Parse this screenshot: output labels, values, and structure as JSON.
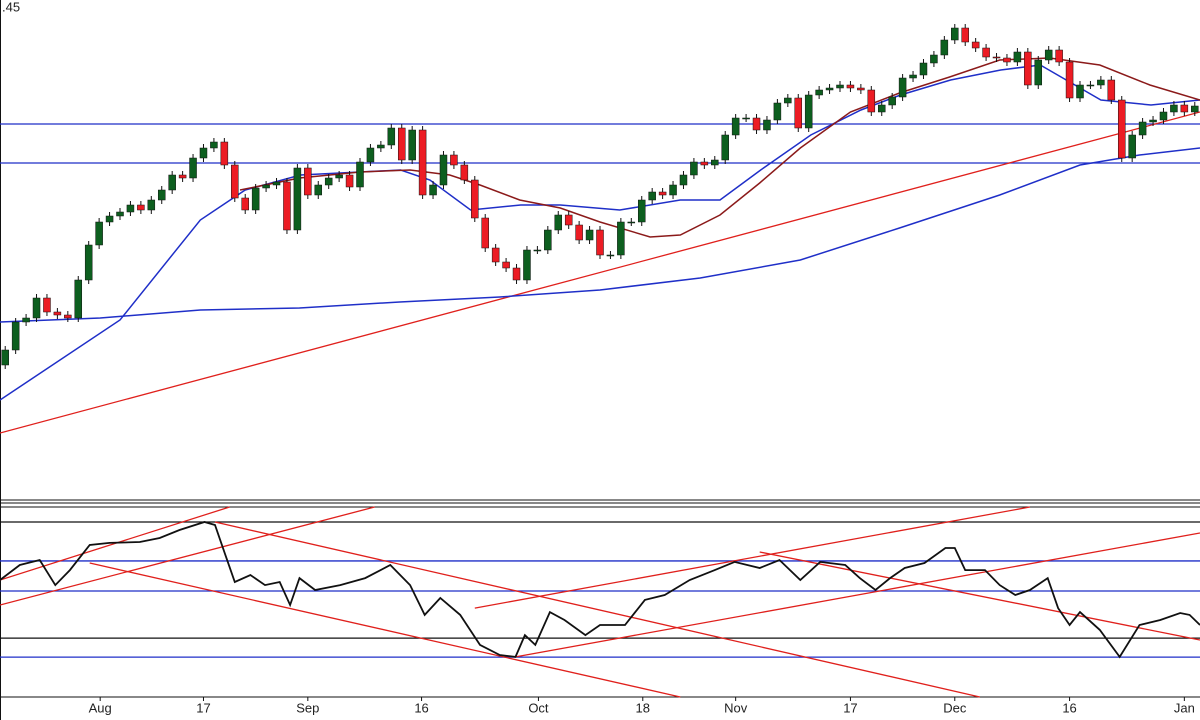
{
  "chart_data": [
    {
      "type": "candlestick",
      "price_label": ".45",
      "xlim": [
        0,
        115
      ],
      "ylim": [
        0,
        500
      ],
      "up_color": "#0d5f1f",
      "down_color": "#ec1c24",
      "wick_color": "#111111",
      "open": [
        135,
        150,
        178,
        182,
        202,
        188,
        185,
        182,
        220,
        255,
        278,
        284,
        288,
        295,
        290,
        300,
        310,
        325,
        322,
        342,
        352,
        358,
        335,
        302,
        290,
        312,
        315,
        318,
        270,
        332,
        305,
        315,
        322,
        325,
        313,
        338,
        352,
        355,
        372,
        340,
        370,
        305,
        315,
        345,
        335,
        320,
        282,
        252,
        238,
        232,
        220,
        250,
        250,
        270,
        285,
        275,
        260,
        270,
        245,
        245,
        278,
        278,
        300,
        308,
        305,
        315,
        325,
        338,
        335,
        340,
        365,
        382,
        382,
        370,
        380,
        397,
        402,
        372,
        405,
        410,
        412,
        415,
        412,
        410,
        388,
        395,
        403,
        422,
        425,
        437,
        445,
        460,
        472,
        458,
        452,
        443,
        442,
        438,
        448,
        415,
        440,
        450,
        438,
        402,
        415,
        415,
        420,
        400,
        342,
        365,
        378,
        380,
        388,
        395,
        388
      ],
      "high": [
        154,
        182,
        186,
        206,
        206,
        192,
        189,
        224,
        259,
        282,
        288,
        292,
        299,
        299,
        304,
        314,
        329,
        329,
        346,
        356,
        362,
        362,
        339,
        306,
        316,
        319,
        322,
        322,
        336,
        336,
        319,
        326,
        329,
        329,
        342,
        356,
        359,
        376,
        376,
        374,
        374,
        319,
        349,
        349,
        339,
        324,
        286,
        256,
        242,
        236,
        254,
        254,
        274,
        289,
        289,
        279,
        274,
        274,
        249,
        282,
        282,
        304,
        312,
        312,
        319,
        329,
        342,
        342,
        344,
        369,
        386,
        386,
        386,
        384,
        401,
        406,
        406,
        409,
        414,
        416,
        419,
        419,
        416,
        414,
        399,
        407,
        426,
        429,
        441,
        449,
        464,
        476,
        476,
        462,
        456,
        447,
        446,
        452,
        452,
        444,
        454,
        454,
        442,
        419,
        419,
        424,
        424,
        404,
        369,
        382,
        384,
        392,
        399,
        399,
        398
      ],
      "low": [
        131,
        146,
        174,
        178,
        184,
        181,
        178,
        178,
        216,
        251,
        274,
        280,
        284,
        286,
        286,
        296,
        306,
        318,
        318,
        338,
        348,
        331,
        298,
        286,
        286,
        308,
        311,
        266,
        266,
        301,
        301,
        311,
        318,
        309,
        309,
        334,
        348,
        351,
        336,
        336,
        301,
        301,
        311,
        331,
        316,
        278,
        248,
        234,
        228,
        216,
        216,
        246,
        246,
        266,
        271,
        256,
        256,
        241,
        241,
        241,
        274,
        274,
        296,
        301,
        301,
        311,
        321,
        331,
        331,
        336,
        361,
        378,
        366,
        366,
        376,
        393,
        368,
        368,
        401,
        406,
        408,
        408,
        406,
        384,
        384,
        391,
        399,
        418,
        421,
        433,
        441,
        456,
        454,
        448,
        439,
        438,
        434,
        434,
        411,
        411,
        436,
        434,
        398,
        398,
        411,
        411,
        396,
        338,
        338,
        361,
        374,
        376,
        384,
        384,
        384
      ],
      "close": [
        150,
        178,
        182,
        202,
        188,
        185,
        182,
        220,
        255,
        278,
        284,
        288,
        295,
        290,
        300,
        310,
        325,
        322,
        342,
        352,
        358,
        335,
        302,
        290,
        312,
        315,
        318,
        270,
        332,
        305,
        315,
        322,
        325,
        313,
        338,
        352,
        355,
        372,
        340,
        370,
        305,
        315,
        345,
        335,
        320,
        282,
        252,
        238,
        232,
        220,
        250,
        250,
        270,
        285,
        275,
        260,
        270,
        245,
        245,
        278,
        278,
        300,
        308,
        305,
        315,
        325,
        338,
        335,
        340,
        365,
        382,
        382,
        370,
        380,
        397,
        402,
        372,
        405,
        410,
        412,
        415,
        412,
        410,
        388,
        395,
        403,
        422,
        425,
        437,
        445,
        460,
        472,
        458,
        452,
        443,
        442,
        438,
        448,
        415,
        440,
        450,
        438,
        402,
        415,
        415,
        420,
        400,
        342,
        365,
        378,
        380,
        388,
        395,
        388,
        394
      ],
      "overlays": [
        {
          "color": "#1f2fc8",
          "x": [
            0,
            11.5,
            19.2,
            23.5,
            28.8,
            38.4,
            41.2,
            45.1,
            49.9,
            53.7,
            59.4,
            65.2,
            69,
            72.9,
            77.7,
            82.5,
            86.3,
            91.1,
            95.9,
            99.7,
            105.5,
            110.3,
            115
          ],
          "values": [
            100,
            180,
            280,
            310,
            325,
            330,
            320,
            290,
            295,
            295,
            290,
            300,
            300,
            330,
            365,
            390,
            405,
            420,
            430,
            435,
            400,
            395,
            400
          ]
        },
        {
          "color": "#1f2fc8",
          "x": [
            0,
            9.6,
            19.2,
            28.7,
            38.3,
            47.9,
            57.5,
            67.1,
            76.7,
            86.2,
            95.8,
            103.5,
            109.2,
            115
          ],
          "values": [
            178,
            182,
            190,
            192,
            198,
            203,
            210,
            222,
            240,
            272,
            305,
            335,
            345,
            352
          ]
        },
        {
          "color": "#8b1a1a",
          "x": [
            23,
            28.7,
            34.5,
            39.3,
            43.1,
            46,
            49.8,
            53.7,
            57.5,
            62.3,
            65.2,
            69,
            72.8,
            76.7,
            81.5,
            86.2,
            91,
            95.8,
            100.6,
            105.4,
            110.2,
            115
          ],
          "values": [
            310,
            322,
            328,
            330,
            325,
            315,
            300,
            292,
            278,
            263,
            265,
            285,
            317,
            352,
            388,
            407,
            423,
            440,
            442,
            435,
            415,
            400
          ]
        }
      ],
      "hlines": [
        {
          "value": 376,
          "color": "#1f2fc8"
        },
        {
          "value": 337,
          "color": "#1f2fc8"
        }
      ],
      "trendlines": [
        {
          "color": "#e0201c",
          "x": [
            0,
            115
          ],
          "values": [
            67,
            388
          ]
        }
      ]
    },
    {
      "type": "line",
      "xlim": [
        0,
        115
      ],
      "ylim": [
        0,
        100
      ],
      "color": "#111111",
      "x": [
        0,
        1.9,
        3.8,
        5.3,
        6.7,
        8.6,
        10.5,
        13.4,
        15.3,
        17.2,
        19.6,
        20.6,
        21.6,
        22.5,
        24,
        25.4,
        26.8,
        27.8,
        28.7,
        30.2,
        32.6,
        35,
        37.4,
        39.3,
        40.7,
        42.2,
        44.1,
        46,
        47.9,
        49.4,
        50.3,
        51.3,
        52.7,
        54.1,
        56.1,
        57.5,
        59.9,
        61.8,
        63.7,
        66.1,
        68.5,
        70.4,
        72.8,
        74.7,
        76.7,
        78.6,
        81,
        82.4,
        83.9,
        85.3,
        86.7,
        88.6,
        90.6,
        91.5,
        92.5,
        94.4,
        95.8,
        97.3,
        98.7,
        100.4,
        101.4,
        102.5,
        103.5,
        105.4,
        107.3,
        109.2,
        111.2,
        113.1,
        114,
        115
      ],
      "values": [
        61.6,
        69.5,
        72.1,
        58.9,
        66.8,
        80,
        81.1,
        81.6,
        83.7,
        87.9,
        92.1,
        90.5,
        74.7,
        60.5,
        64.2,
        58.9,
        60.5,
        48.4,
        62.6,
        56.3,
        58.9,
        62.6,
        69.5,
        58.9,
        43.2,
        52.1,
        43.2,
        27.4,
        22.1,
        21.1,
        32.6,
        27.4,
        44.7,
        40.5,
        32.6,
        37.9,
        37.9,
        51.1,
        53.7,
        61.6,
        66.8,
        71.1,
        67.9,
        72.1,
        61.6,
        71.1,
        69.5,
        62.6,
        56.3,
        62.6,
        67.9,
        70.5,
        78.4,
        78.4,
        66.8,
        66.8,
        58.9,
        53.7,
        56.3,
        62.6,
        46.8,
        37.9,
        44.7,
        35.3,
        21.1,
        37.9,
        40.5,
        44.2,
        43.2,
        37.9
      ],
      "hlines": [
        {
          "value": 92.1,
          "color": "#111111"
        },
        {
          "value": 71.6,
          "color": "#1f2fc8"
        },
        {
          "value": 55.8,
          "color": "#1f2fc8"
        },
        {
          "value": 31,
          "color": "#111111"
        },
        {
          "value": 21,
          "color": "#1f2fc8"
        }
      ],
      "trendlines": [
        {
          "color": "#e0201c",
          "x": [
            0,
            22
          ],
          "values": [
            61.6,
            100
          ]
        },
        {
          "color": "#e0201c",
          "x": [
            0,
            35.9
          ],
          "values": [
            48.4,
            100
          ]
        },
        {
          "color": "#e0201c",
          "x": [
            8.6,
            65.2
          ],
          "values": [
            70.5,
            0
          ]
        },
        {
          "color": "#e0201c",
          "x": [
            20.6,
            93.9
          ],
          "values": [
            92.1,
            0
          ]
        },
        {
          "color": "#e0201c",
          "x": [
            45.5,
            98.7
          ],
          "values": [
            46.8,
            100
          ]
        },
        {
          "color": "#e0201c",
          "x": [
            49.4,
            115
          ],
          "values": [
            21.1,
            86.3
          ]
        },
        {
          "color": "#e0201c",
          "x": [
            72.8,
            115
          ],
          "values": [
            76.3,
            30
          ]
        }
      ],
      "xticks": [
        {
          "value": 9.6,
          "label": "Aug"
        },
        {
          "value": 19.5,
          "label": "17"
        },
        {
          "value": 29.5,
          "label": "Sep"
        },
        {
          "value": 40.4,
          "label": "16"
        },
        {
          "value": 51.6,
          "label": "Oct"
        },
        {
          "value": 61.6,
          "label": "18"
        },
        {
          "value": 70.5,
          "label": "Nov"
        },
        {
          "value": 81.5,
          "label": "17"
        },
        {
          "value": 91.5,
          "label": "Dec"
        },
        {
          "value": 102.5,
          "label": "16"
        },
        {
          "value": 113.5,
          "label": "Jan"
        }
      ]
    }
  ]
}
